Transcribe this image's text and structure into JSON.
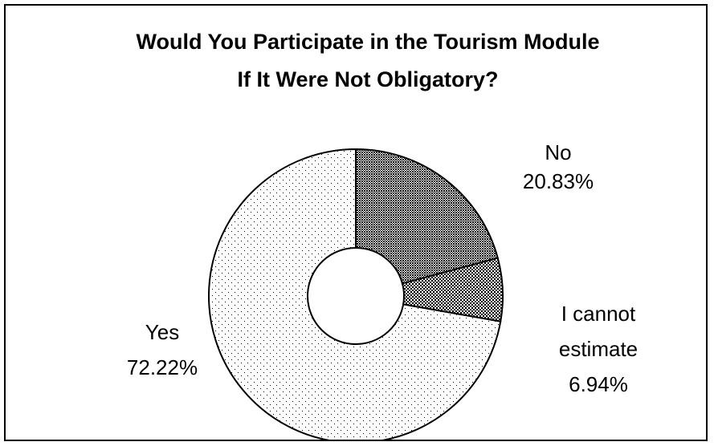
{
  "chart_data": {
    "type": "pie",
    "subtype": "donut",
    "title_lines": [
      "Would You Participate in the Tourism Module",
      "If It Were Not Obligatory?"
    ],
    "slices": [
      {
        "name": "No",
        "value": 20.83,
        "value_label": "20.83%",
        "label_lines": [
          "No",
          "20.83%"
        ],
        "fill_pattern": "dense-crosshatch"
      },
      {
        "name": "I cannot estimate",
        "value": 6.94,
        "value_label": "6.94%",
        "label_lines": [
          "I cannot",
          "estimate",
          "6.94%"
        ],
        "fill_pattern": "coarse-dots"
      },
      {
        "name": "Yes",
        "value": 72.22,
        "value_label": "72.22%",
        "label_lines": [
          "Yes",
          "72.22%"
        ],
        "fill_pattern": "sparse-dots"
      }
    ],
    "legend": "none",
    "colors": {
      "background": "#ffffff",
      "outline": "#000000",
      "pattern_ink": "#000000"
    }
  }
}
